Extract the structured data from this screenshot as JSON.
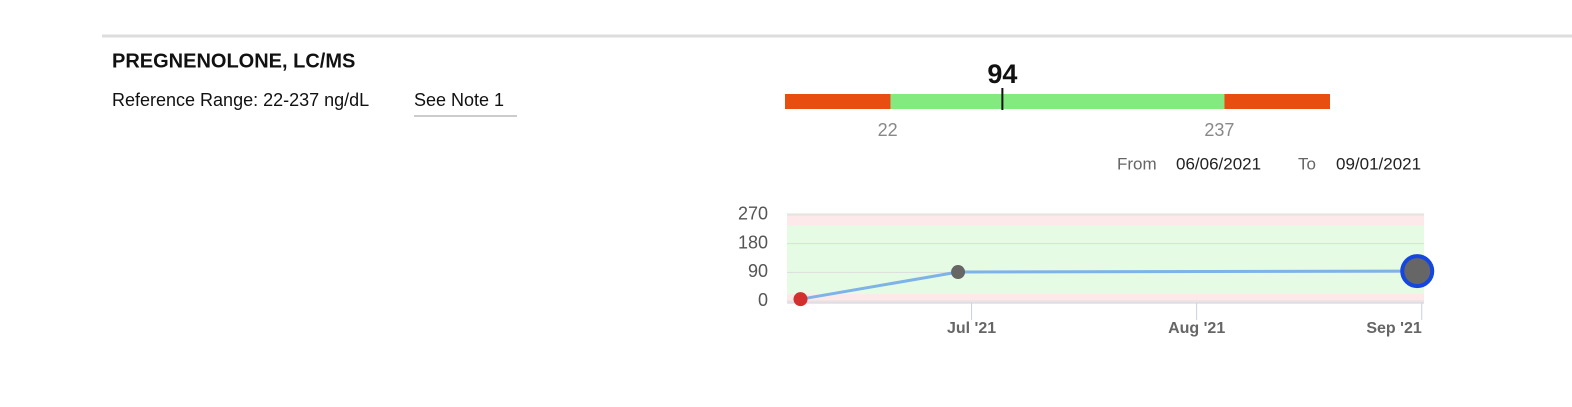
{
  "header": {
    "title": "PREGNENOLONE, LC/MS",
    "reference_range": "Reference Range: 22-237 ng/dL",
    "note_link": "See Note 1"
  },
  "range_bar": {
    "value": 94,
    "low": 22,
    "high": 237,
    "lim": [
      -46,
      305
    ],
    "low_color": "#e84e0f",
    "normal_color": "#83ea80"
  },
  "date_filter": {
    "from_label": "From",
    "from": "06/06/2021",
    "to_label": "To",
    "to": "09/01/2021"
  },
  "chart_data": {
    "type": "line",
    "x": [
      6.24,
      6.94,
      8.98
    ],
    "series": [
      {
        "color": "#7eb3e8",
        "values": [
          6,
          91,
          94
        ],
        "point_colors": [
          "#d32f2f",
          "#666666",
          "#666666"
        ]
      }
    ],
    "xlim": [
      6.18,
      9.01
    ],
    "xticks": [
      {
        "value": 7,
        "label": "Jul '21"
      },
      {
        "value": 8,
        "label": "Aug '21"
      },
      {
        "value": 9,
        "label": "Sep '21"
      }
    ],
    "ylim": [
      -6,
      276
    ],
    "yticks": [
      0,
      90,
      180,
      270
    ],
    "grid": true
  }
}
